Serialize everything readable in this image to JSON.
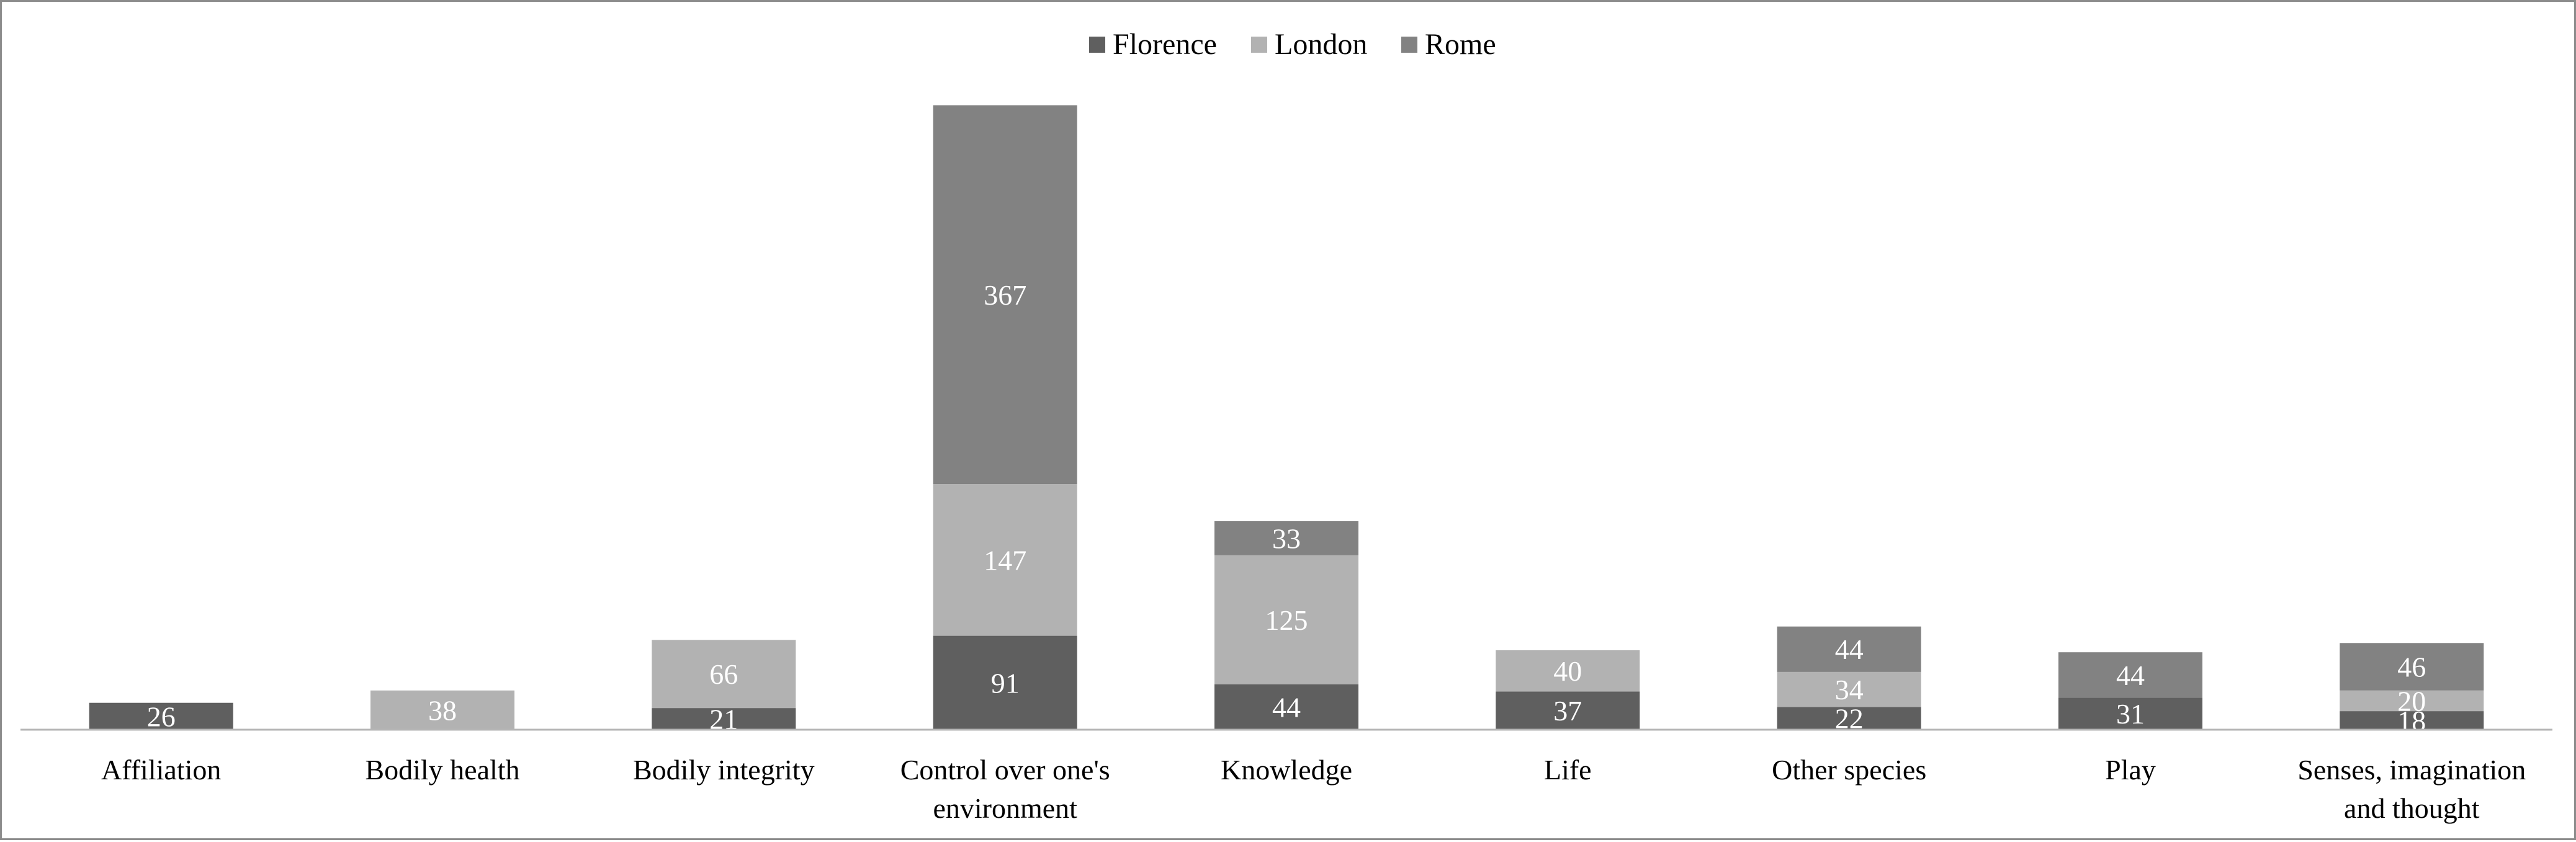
{
  "chart_data": {
    "type": "bar",
    "stacked": true,
    "categories": [
      "Affiliation",
      "Bodily health",
      "Bodily integrity",
      "Control over one's environment",
      "Knowledge",
      "Life",
      "Other species",
      "Play",
      "Senses, imagination and thought"
    ],
    "category_lines": [
      [
        "Affiliation"
      ],
      [
        "Bodily health"
      ],
      [
        "Bodily integrity"
      ],
      [
        "Control over one's",
        "environment"
      ],
      [
        "Knowledge"
      ],
      [
        "Life"
      ],
      [
        "Other species"
      ],
      [
        "Play"
      ],
      [
        "Senses, imagination",
        "and thought"
      ]
    ],
    "series": [
      {
        "name": "Florence",
        "color": "#5f5f5f",
        "values": [
          26,
          null,
          21,
          91,
          44,
          37,
          22,
          31,
          18
        ]
      },
      {
        "name": "London",
        "color": "#b2b2b2",
        "values": [
          null,
          38,
          66,
          147,
          125,
          40,
          34,
          null,
          20
        ]
      },
      {
        "name": "Rome",
        "color": "#828282",
        "values": [
          null,
          null,
          null,
          367,
          33,
          null,
          44,
          44,
          46
        ]
      }
    ],
    "ylim": [
      0,
      630
    ],
    "grid": false,
    "legend_position": "top-center",
    "title": "",
    "xlabel": "",
    "ylabel": ""
  }
}
